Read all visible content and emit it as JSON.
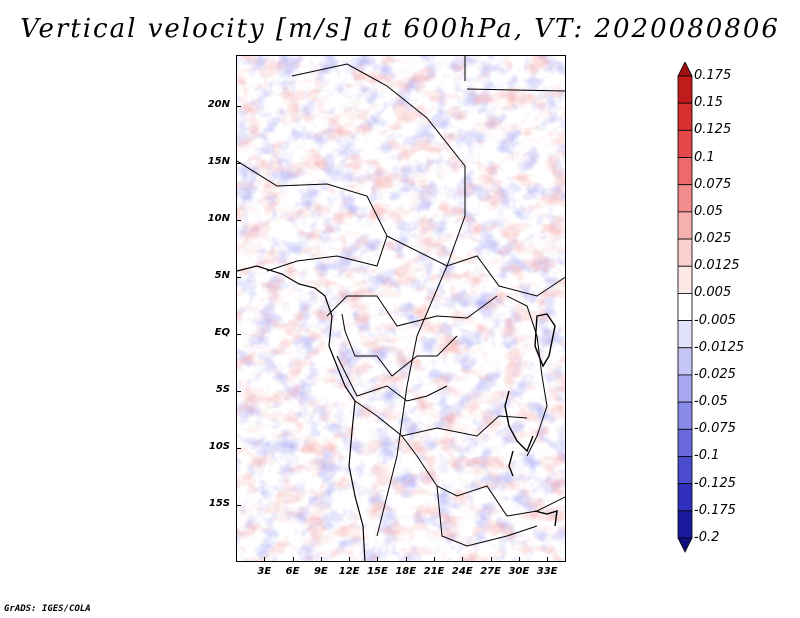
{
  "title": "Vertical velocity [m/s] at 600hPa, VT: 2020080806",
  "footer": "GrADS: IGES/COLA",
  "map": {
    "lat_labels": [
      "20N",
      "15N",
      "10N",
      "5N",
      "EQ",
      "5S",
      "10S",
      "15S"
    ],
    "lat_values": [
      20,
      15,
      10,
      5,
      0,
      -5,
      -10,
      -15
    ],
    "lon_labels": [
      "3E",
      "6E",
      "9E",
      "12E",
      "15E",
      "18E",
      "21E",
      "24E",
      "27E",
      "30E",
      "33E"
    ],
    "lon_values": [
      3,
      6,
      9,
      12,
      15,
      18,
      21,
      24,
      27,
      30,
      33
    ],
    "lat_range": [
      -20,
      24.5
    ],
    "lon_range": [
      0,
      35
    ]
  },
  "colorbar": {
    "labels": [
      "0.175",
      "0.15",
      "0.125",
      "0.1",
      "0.075",
      "0.05",
      "0.025",
      "0.0125",
      "0.005",
      "-0.005",
      "-0.0125",
      "-0.025",
      "-0.05",
      "-0.075",
      "-0.1",
      "-0.125",
      "-0.175",
      "-0.2"
    ],
    "colors": [
      "#a01010",
      "#c01c1c",
      "#d83030",
      "#e44848",
      "#ec6a6a",
      "#f28c8c",
      "#f7b0b0",
      "#fbd0d0",
      "#fde8e8",
      "#ffffff",
      "#e2e2fb",
      "#c6c6f6",
      "#a8a8f0",
      "#8a8ae8",
      "#6a6ade",
      "#4c4cd0",
      "#3030bc",
      "#1a1a9c",
      "#10107c"
    ],
    "units": "m/s"
  }
}
